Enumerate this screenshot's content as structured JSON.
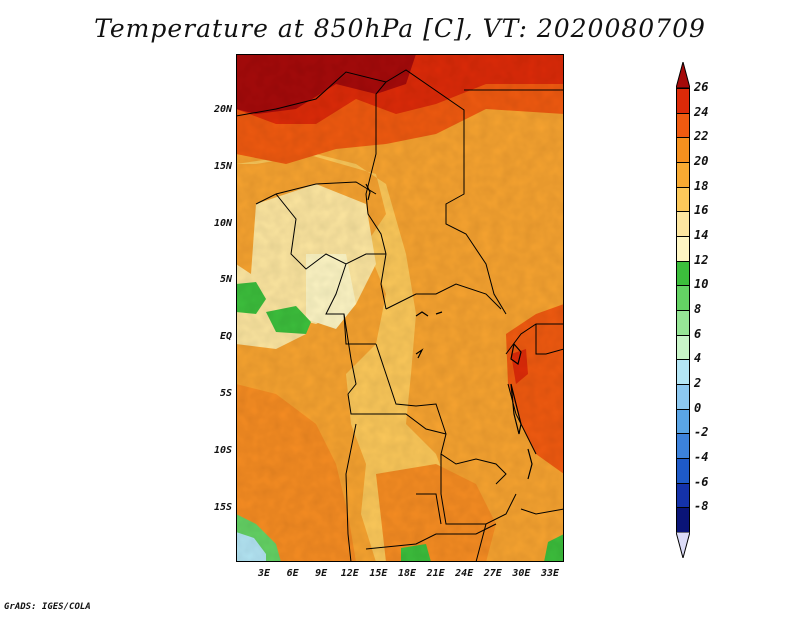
{
  "title": "Temperature at 850hPa [C], VT: 2020080709",
  "credit": "GrADS: IGES/COLA",
  "map": {
    "lat_labels": [
      "20N",
      "15N",
      "10N",
      "5N",
      "EQ",
      "5S",
      "10S",
      "15S"
    ],
    "lon_labels": [
      "3E",
      "6E",
      "9E",
      "12E",
      "15E",
      "18E",
      "21E",
      "24E",
      "27E",
      "30E",
      "33E"
    ]
  },
  "colorbar": {
    "labels": [
      "26",
      "24",
      "22",
      "20",
      "18",
      "16",
      "14",
      "12",
      "10",
      "8",
      "6",
      "4",
      "2",
      "0",
      "-2",
      "-4",
      "-6",
      "-8"
    ],
    "colors": [
      "#a50a0a",
      "#dc2a08",
      "#f05a10",
      "#f6901e",
      "#f8aa32",
      "#fcc85a",
      "#fde6a0",
      "#fef6c4",
      "#3cbe3c",
      "#64d264",
      "#96e696",
      "#c8f5c8",
      "#b4e6f5",
      "#8cc8f0",
      "#5aa5e6",
      "#3c82dc",
      "#1e5ac8",
      "#1432aa",
      "#0a1478",
      "#dcdcf8"
    ]
  }
}
